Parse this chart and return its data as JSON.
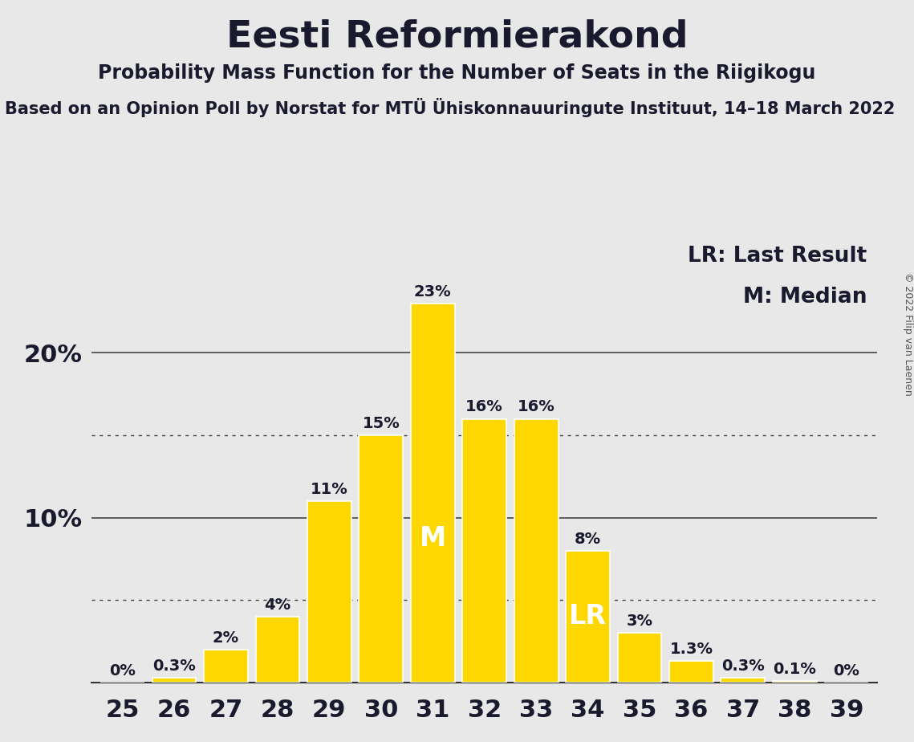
{
  "title": "Eesti Reformierakond",
  "subtitle": "Probability Mass Function for the Number of Seats in the Riigikogu",
  "source_line": "Based on an Opinion Poll by Norstat for MTÜ Ühiskonnauuringute Instituut, 14–18 March 2022",
  "copyright": "© 2022 Filip van Laenen",
  "seats": [
    25,
    26,
    27,
    28,
    29,
    30,
    31,
    32,
    33,
    34,
    35,
    36,
    37,
    38,
    39
  ],
  "probabilities": [
    0.0,
    0.3,
    2.0,
    4.0,
    11.0,
    15.0,
    23.0,
    16.0,
    16.0,
    8.0,
    3.0,
    1.3,
    0.3,
    0.1,
    0.0
  ],
  "bar_labels": [
    "0%",
    "0.3%",
    "2%",
    "4%",
    "11%",
    "15%",
    "23%",
    "16%",
    "16%",
    "8%",
    "3%",
    "1.3%",
    "0.3%",
    "0.1%",
    "0%"
  ],
  "bar_color": "#FFD700",
  "bar_edgecolor": "#FFFFFF",
  "background_color": "#E8E8E8",
  "median_seat": 31,
  "last_result_seat": 34,
  "ytick_positions": [
    0,
    10,
    20
  ],
  "ytick_labels": [
    "",
    "10%",
    "20%"
  ],
  "dotted_lines": [
    5.0,
    15.0
  ],
  "solid_lines": [
    10.0,
    20.0
  ],
  "ylim": [
    0,
    27
  ],
  "title_fontsize": 34,
  "subtitle_fontsize": 17,
  "source_fontsize": 15,
  "label_fontsize": 14,
  "tick_fontsize": 22,
  "legend_fontsize": 19
}
